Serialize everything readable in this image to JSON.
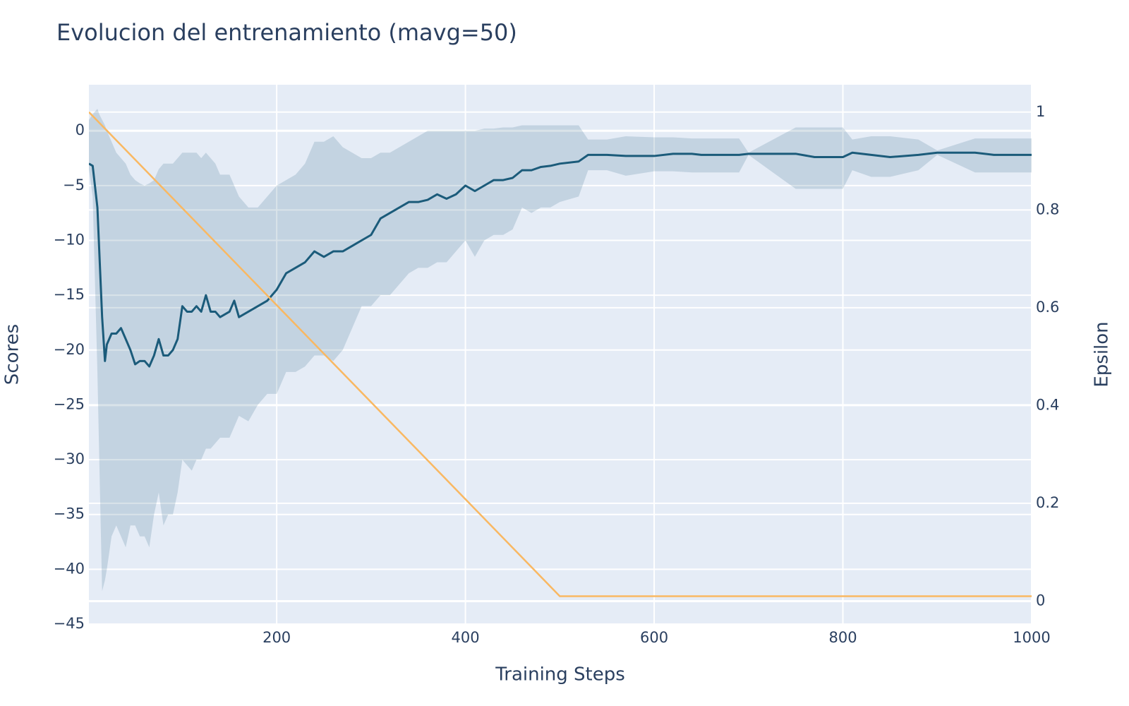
{
  "chart_data": {
    "type": "line",
    "title": "Evolucion del entrenamiento (mavg=50)",
    "x_label": "Training Steps",
    "y_label": "Scores",
    "y2_label": "Epsilon",
    "x": [
      1,
      5,
      10,
      12,
      15,
      18,
      20,
      25,
      30,
      35,
      40,
      45,
      50,
      55,
      60,
      65,
      70,
      75,
      80,
      85,
      90,
      95,
      100,
      105,
      110,
      115,
      120,
      125,
      130,
      135,
      140,
      150,
      155,
      160,
      170,
      180,
      190,
      200,
      210,
      220,
      230,
      240,
      250,
      260,
      270,
      280,
      290,
      300,
      310,
      320,
      330,
      340,
      350,
      360,
      370,
      380,
      390,
      400,
      410,
      420,
      430,
      440,
      450,
      460,
      470,
      480,
      490,
      500,
      520,
      530,
      550,
      570,
      600,
      620,
      640,
      650,
      690,
      700,
      750,
      770,
      800,
      810,
      830,
      850,
      880,
      900,
      940,
      960,
      1000
    ],
    "xlim": [
      1,
      1000
    ],
    "xticks": [
      200,
      400,
      600,
      800,
      1000
    ],
    "ylim": [
      -45,
      4.2
    ],
    "yticks": [
      {
        "value": -45,
        "label": "−45"
      },
      {
        "value": -40,
        "label": "−40"
      },
      {
        "value": -35,
        "label": "−35"
      },
      {
        "value": -30,
        "label": "−30"
      },
      {
        "value": -25,
        "label": "−25"
      },
      {
        "value": -20,
        "label": "−20"
      },
      {
        "value": -15,
        "label": "−15"
      },
      {
        "value": -10,
        "label": "−10"
      },
      {
        "value": -5,
        "label": "−5"
      },
      0
    ],
    "y2lim": [
      -0.047,
      1.056
    ],
    "y2ticks": [
      0,
      0.2,
      0.4,
      0.6,
      0.8,
      1
    ],
    "grid": true,
    "series": [
      {
        "type": "band",
        "color": "#1b5b7a",
        "upper": [
          1,
          1.5,
          2,
          1.5,
          1,
          0.5,
          0,
          -1,
          -2,
          -2.5,
          -3,
          -4,
          -4.5,
          -4.8,
          -5,
          -4.8,
          -4.5,
          -3.5,
          -3,
          -3,
          -3,
          -2.5,
          -2,
          -2,
          -2,
          -2,
          -2.5,
          -2,
          -2.5,
          -3,
          -4,
          -4,
          -5,
          -6,
          -7,
          -7,
          -6,
          -5,
          -4.5,
          -4,
          -3,
          -1,
          -1,
          -0.5,
          -1.5,
          -2,
          -2.5,
          -2.5,
          -2,
          -2,
          -1.5,
          -1,
          -0.5,
          0,
          0,
          0,
          0,
          0,
          0,
          0.2,
          0.2,
          0.3,
          0.3,
          0.5,
          0.5,
          0.5,
          0.5,
          0.5,
          0.5,
          -0.8,
          -0.8,
          -0.5,
          -0.6,
          -0.6,
          -0.7,
          -0.7,
          -0.7,
          -2.0,
          0.3,
          0.3,
          0.3,
          -0.8,
          -0.5,
          -0.5,
          -0.8,
          -1.8,
          -0.7,
          -0.7,
          -0.7
        ],
        "lower": [
          -3.5,
          -6,
          -22,
          -30,
          -42,
          -41,
          -40,
          -37,
          -36,
          -37,
          -38,
          -36,
          -36,
          -37,
          -37,
          -38,
          -35,
          -33,
          -36,
          -35,
          -35,
          -33,
          -30,
          -30.5,
          -31,
          -30,
          -30,
          -29,
          -29,
          -28.5,
          -28,
          -28,
          -27,
          -26,
          -26.5,
          -25,
          -24,
          -24,
          -22,
          -22,
          -21.5,
          -20.5,
          -20.5,
          -21,
          -20,
          -18,
          -16,
          -16,
          -15,
          -15,
          -14,
          -13,
          -12.5,
          -12.5,
          -12,
          -12,
          -11,
          -10,
          -11.5,
          -10,
          -9.5,
          -9.5,
          -9,
          -7,
          -7.5,
          -7,
          -7,
          -6.5,
          -6,
          -3.6,
          -3.6,
          -4.1,
          -3.7,
          -3.7,
          -3.8,
          -3.8,
          -3.8,
          -2.2,
          -5.3,
          -5.3,
          -5.3,
          -3.6,
          -4.2,
          -4.2,
          -3.6,
          -2.2,
          -3.8,
          -3.8,
          -3.8
        ]
      },
      {
        "color": "#1b5b7a",
        "values": [
          -3,
          -3.2,
          -7,
          -11,
          -17,
          -21,
          -19.5,
          -18.5,
          -18.5,
          -18,
          -19,
          -20,
          -21.3,
          -21,
          -21,
          -21.5,
          -20.5,
          -19,
          -20.5,
          -20.5,
          -20,
          -19,
          -16,
          -16.5,
          -16.5,
          -16,
          -16.5,
          -15,
          -16.5,
          -16.5,
          -17,
          -16.5,
          -15.5,
          -17,
          -16.5,
          -16,
          -15.5,
          -14.5,
          -13,
          -12.5,
          -12,
          -11,
          -11.5,
          -11,
          -11,
          -10.5,
          -10,
          -9.5,
          -8,
          -7.5,
          -7,
          -6.5,
          -6.5,
          -6.3,
          -5.8,
          -6.2,
          -5.8,
          -5,
          -5.5,
          -5,
          -4.5,
          -4.5,
          -4.3,
          -3.6,
          -3.6,
          -3.3,
          -3.2,
          -3,
          -2.8,
          -2.2,
          -2.2,
          -2.3,
          -2.3,
          -2.1,
          -2.1,
          -2.2,
          -2.2,
          -2.1,
          -2.1,
          -2.4,
          -2.4,
          -2.0,
          -2.2,
          -2.4,
          -2.2,
          -2.0,
          -2.0,
          -2.2,
          -2.2
        ]
      },
      {
        "color": "#f9b862",
        "axis": "y2",
        "x": [
          1,
          500,
          1000
        ],
        "values": [
          1,
          0.01,
          0.01
        ]
      }
    ],
    "plot_bgcolor": "#e5ecf6"
  }
}
